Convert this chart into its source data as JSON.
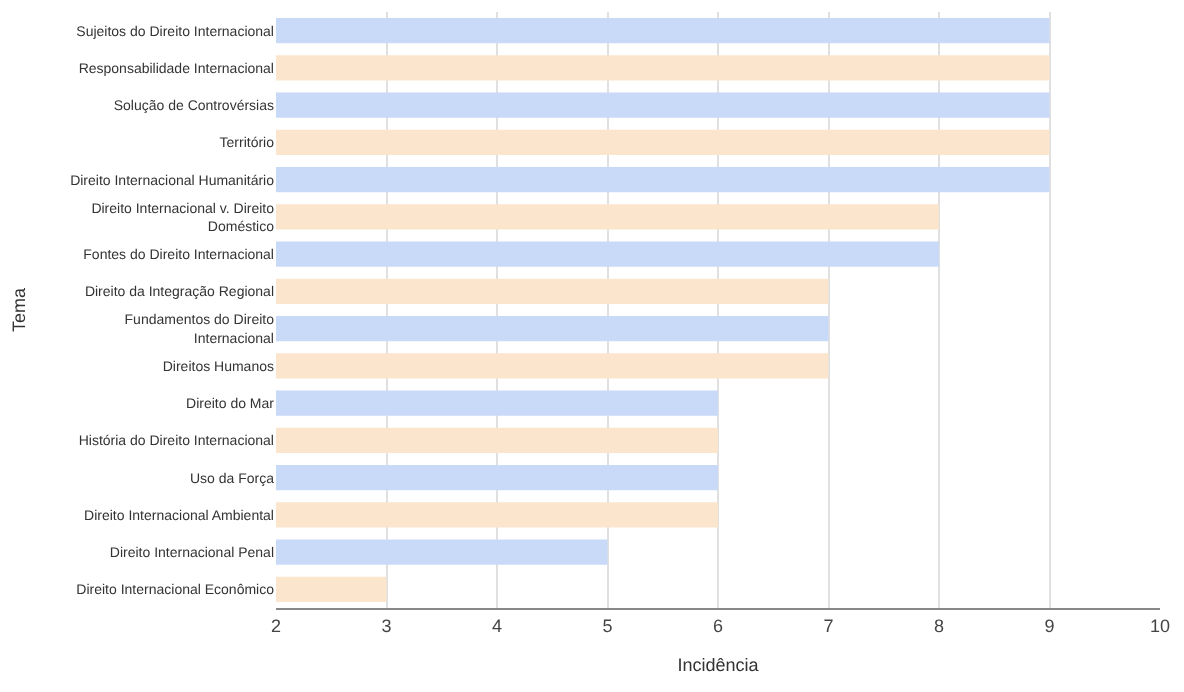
{
  "chart_data": {
    "type": "bar",
    "orientation": "horizontal",
    "xlabel": "Incidência",
    "ylabel": "Tema",
    "categories": [
      "Sujeitos do Direito Internacional",
      "Responsabilidade Internacional",
      "Solução de Controvérsias",
      "Território",
      "Direito Internacional Humanitário",
      "Direito Internacional v. Direito Doméstico",
      "Fontes do Direito Internacional",
      "Direito da Integração Regional",
      "Fundamentos do Direito Internacional",
      "Direitos Humanos",
      "Direito do Mar",
      "História do Direito Internacional",
      "Uso da Força",
      "Direito Internacional Ambiental",
      "Direito Internacional Penal",
      "Direito Internacional Econômico"
    ],
    "values": [
      9,
      9,
      9,
      9,
      9,
      8,
      8,
      7,
      7,
      7,
      6,
      6,
      6,
      6,
      5,
      3
    ],
    "colors": [
      "#c9daf8",
      "#fce5cd",
      "#c9daf8",
      "#fce5cd",
      "#c9daf8",
      "#fce5cd",
      "#c9daf8",
      "#fce5cd",
      "#c9daf8",
      "#fce5cd",
      "#c9daf8",
      "#fce5cd",
      "#c9daf8",
      "#fce5cd",
      "#c9daf8",
      "#fce5cd"
    ],
    "xlim": [
      2,
      10
    ],
    "xticks": [
      2,
      3,
      4,
      5,
      6,
      7,
      8,
      9,
      10
    ],
    "grid": "x"
  }
}
